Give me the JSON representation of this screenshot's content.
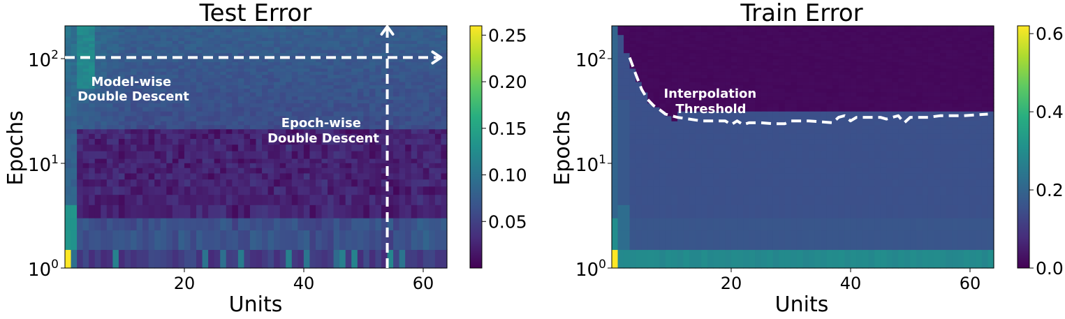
{
  "chart_data": [
    {
      "type": "heatmap",
      "title": "Test Error",
      "xlabel": "Units",
      "ylabel": "Epochs",
      "xlim": [
        1,
        65
      ],
      "ylim": [
        1,
        200
      ],
      "yscale": "log",
      "x_ticks": [
        "20",
        "40",
        "60"
      ],
      "x_tick_values": [
        20,
        40,
        60
      ],
      "y_ticks": [
        {
          "base": "10",
          "exp": "0",
          "value": 1
        },
        {
          "base": "10",
          "exp": "1",
          "value": 10
        },
        {
          "base": "10",
          "exp": "2",
          "value": 100
        }
      ],
      "colormap": "viridis",
      "colorbar": {
        "ticks": [
          "0.05",
          "0.10",
          "0.15",
          "0.20",
          "0.25"
        ],
        "tick_values": [
          0.05,
          0.1,
          0.15,
          0.2,
          0.25
        ],
        "min": 0.0,
        "max": 0.26
      },
      "annotations": [
        {
          "lines": [
            "Model-wise",
            "Double Descent"
          ]
        },
        {
          "lines": [
            "Epoch-wise",
            "Double Descent"
          ]
        }
      ],
      "arrows": [
        {
          "direction": "horizontal",
          "at_epoch": 100,
          "from_units": 1,
          "to_units": 64
        },
        {
          "direction": "vertical",
          "at_units": 55,
          "from_epoch": 1,
          "to_epoch": 200
        }
      ]
    },
    {
      "type": "heatmap",
      "title": "Train Error",
      "xlabel": "Units",
      "ylabel": "Epochs",
      "xlim": [
        1,
        65
      ],
      "ylim": [
        1,
        200
      ],
      "yscale": "log",
      "x_ticks": [
        "20",
        "40",
        "60"
      ],
      "x_tick_values": [
        20,
        40,
        60
      ],
      "y_ticks": [
        {
          "base": "10",
          "exp": "0",
          "value": 1
        },
        {
          "base": "10",
          "exp": "1",
          "value": 10
        },
        {
          "base": "10",
          "exp": "2",
          "value": 100
        }
      ],
      "colormap": "viridis",
      "colorbar": {
        "ticks": [
          "0.0",
          "0.2",
          "0.4",
          "0.6"
        ],
        "tick_values": [
          0.0,
          0.2,
          0.4,
          0.6
        ],
        "min": 0.0,
        "max": 0.62
      },
      "annotations": [
        {
          "lines": [
            "Interpolation",
            "Threshold"
          ]
        }
      ],
      "threshold_curve": {
        "units": [
          4,
          5,
          6,
          7,
          8,
          9,
          10,
          12,
          14,
          16,
          18,
          20,
          21,
          22,
          23,
          24,
          26,
          28,
          30,
          31,
          32,
          34,
          36,
          38,
          39,
          40,
          41,
          42,
          44,
          46,
          47,
          48,
          49,
          50,
          51,
          52,
          54,
          56,
          58,
          60,
          62,
          64
        ],
        "epochs": [
          100,
          70,
          50,
          40,
          35,
          32,
          29,
          27,
          26,
          25,
          25,
          25,
          23,
          25,
          23,
          24,
          24,
          23.5,
          23.5,
          25,
          25,
          25,
          24.5,
          24,
          27,
          28,
          25,
          27,
          27,
          27,
          26,
          27,
          28,
          24,
          27,
          27,
          27,
          28,
          28,
          28,
          28.5,
          29
        ]
      }
    }
  ]
}
